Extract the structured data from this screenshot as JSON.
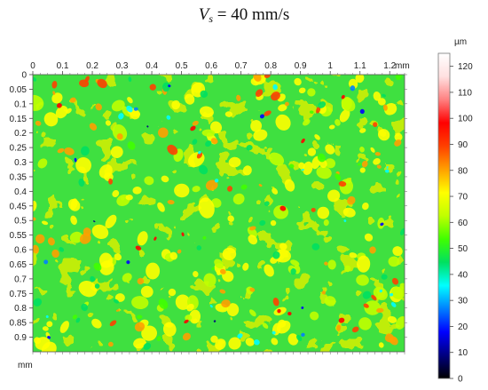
{
  "title": {
    "symbol": "V",
    "subscript": "s",
    "rest": " = 40 mm/s"
  },
  "chart_data": {
    "type": "heatmap",
    "x_unit": "mm",
    "y_unit": "mm",
    "xlim": [
      0,
      1.25
    ],
    "ylim": [
      0,
      0.95
    ],
    "x_ticks": [
      "0",
      "0.1",
      "0.2",
      "0.3",
      "0.4",
      "0.5",
      "0.6",
      "0.7",
      "0.8",
      "0.9",
      "1",
      "1.1",
      "1.2"
    ],
    "y_ticks": [
      "0",
      "0.05",
      "0.1",
      "0.15",
      "0.2",
      "0.25",
      "0.3",
      "0.35",
      "0.4",
      "0.45",
      "0.5",
      "0.55",
      "0.6",
      "0.65",
      "0.7",
      "0.75",
      "0.8",
      "0.85",
      "0.9"
    ],
    "colorbar": {
      "unit": "µm",
      "range": [
        0,
        125
      ],
      "ticks": [
        "0",
        "10",
        "20",
        "30",
        "40",
        "50",
        "60",
        "70",
        "80",
        "90",
        "100",
        "110",
        "120"
      ],
      "colors": [
        "#000000",
        "#000080",
        "#0000ff",
        "#0080ff",
        "#00ffff",
        "#00e060",
        "#40ff00",
        "#c0ff00",
        "#ffff00",
        "#ffa000",
        "#ff4000",
        "#ff0000",
        "#ff8080",
        "#ffe0e0",
        "#ffffff"
      ]
    },
    "dominant_height_um": 60
  }
}
